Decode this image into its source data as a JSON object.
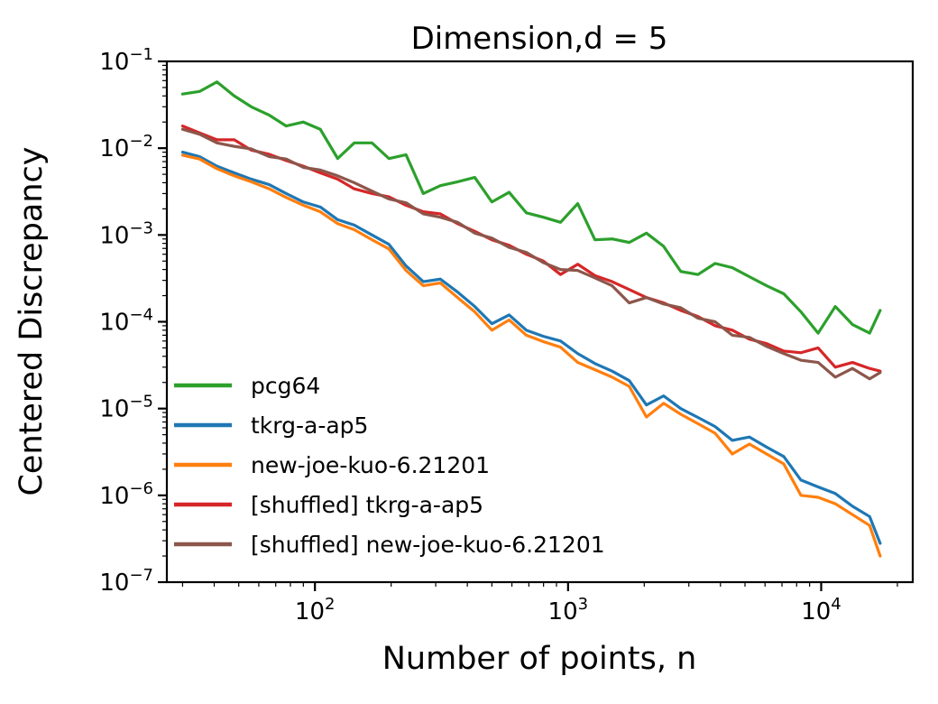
{
  "chart_data": {
    "type": "line",
    "title": "Dimension,d = 5",
    "xlabel": "Number of points, n",
    "ylabel": "Centered Discrepancy",
    "xscale": "log",
    "yscale": "log",
    "xlim": [
      26,
      23000
    ],
    "ylim": [
      1e-07,
      0.1
    ],
    "grid": false,
    "legend_position": "lower-left",
    "xticks": [
      {
        "v": 100,
        "base": "10",
        "exp": "2"
      },
      {
        "v": 1000,
        "base": "10",
        "exp": "3"
      },
      {
        "v": 10000,
        "base": "10",
        "exp": "4"
      }
    ],
    "yticks": [
      {
        "v": 0.1,
        "base": "10",
        "exp": "−1"
      },
      {
        "v": 0.01,
        "base": "10",
        "exp": "−2"
      },
      {
        "v": 0.001,
        "base": "10",
        "exp": "−3"
      },
      {
        "v": 0.0001,
        "base": "10",
        "exp": "−4"
      },
      {
        "v": 1e-05,
        "base": "10",
        "exp": "−5"
      },
      {
        "v": 1e-06,
        "base": "10",
        "exp": "−6"
      },
      {
        "v": 1e-07,
        "base": "10",
        "exp": "−7"
      }
    ],
    "x": [
      30,
      35,
      41,
      48,
      56,
      66,
      77,
      90,
      105,
      123,
      143,
      168,
      196,
      229,
      268,
      313,
      366,
      428,
      500,
      585,
      684,
      799,
      934,
      1092,
      1277,
      1493,
      1745,
      2040,
      2385,
      2788,
      3259,
      3810,
      4454,
      5207,
      6087,
      7116,
      8319,
      9725,
      11369,
      13291,
      15537,
      17100
    ],
    "series": [
      {
        "name": "pcg64",
        "color": "#2ca02c",
        "values": [
          0.042,
          0.045,
          0.058,
          0.04,
          0.03,
          0.024,
          0.018,
          0.02,
          0.0165,
          0.0076,
          0.0115,
          0.0115,
          0.0076,
          0.0084,
          0.003,
          0.0037,
          0.0041,
          0.0046,
          0.0024,
          0.0031,
          0.0018,
          0.0016,
          0.0014,
          0.0023,
          0.00088,
          0.0009,
          0.00082,
          0.00105,
          0.00074,
          0.00038,
          0.00035,
          0.00047,
          0.00042,
          0.00033,
          0.00026,
          0.00021,
          0.00013,
          7.4e-05,
          0.00015,
          9.3e-05,
          7.4e-05,
          0.000135
        ]
      },
      {
        "name": "tkrg-a-ap5",
        "color": "#1f77b4",
        "values": [
          0.009,
          0.008,
          0.0062,
          0.0052,
          0.0044,
          0.0038,
          0.003,
          0.0024,
          0.0021,
          0.0015,
          0.0013,
          0.001,
          0.00078,
          0.00044,
          0.00029,
          0.00031,
          0.00022,
          0.00015,
          9.5e-05,
          0.00012,
          8e-05,
          6.8e-05,
          6e-05,
          4.3e-05,
          3.3e-05,
          2.7e-05,
          2.1e-05,
          1.1e-05,
          1.4e-05,
          1e-05,
          7.9e-06,
          6.2e-06,
          4.3e-06,
          4.7e-06,
          3.6e-06,
          2.8e-06,
          1.5e-06,
          1.25e-06,
          1.05e-06,
          7.5e-07,
          5.7e-07,
          2.8e-07
        ]
      },
      {
        "name": "new-joe-kuo-6.21201",
        "color": "#ff7f0e",
        "values": [
          0.0083,
          0.0075,
          0.0058,
          0.0048,
          0.0041,
          0.0034,
          0.0027,
          0.0022,
          0.00185,
          0.00135,
          0.00115,
          0.00088,
          0.00069,
          0.00039,
          0.00026,
          0.00028,
          0.00019,
          0.00013,
          8e-05,
          0.000105,
          7e-05,
          5.9e-05,
          5.1e-05,
          3.4e-05,
          2.8e-05,
          2.3e-05,
          1.8e-05,
          8e-06,
          1.15e-05,
          8.6e-06,
          6.7e-06,
          5.2e-06,
          3e-06,
          3.9e-06,
          3e-06,
          2.3e-06,
          1e-06,
          9.5e-07,
          8e-07,
          6e-07,
          4.5e-07,
          2e-07
        ]
      },
      {
        "name": "[shuffled] tkrg-a-ap5",
        "color": "#d62728",
        "values": [
          0.018,
          0.015,
          0.0125,
          0.0125,
          0.0095,
          0.0085,
          0.0072,
          0.0062,
          0.0052,
          0.0044,
          0.0034,
          0.003,
          0.00275,
          0.0022,
          0.00185,
          0.00175,
          0.00135,
          0.0011,
          0.00088,
          0.00076,
          0.0006,
          0.0005,
          0.00035,
          0.00046,
          0.00034,
          0.00029,
          0.000235,
          0.00019,
          0.000165,
          0.000135,
          0.000115,
          9e-05,
          8e-05,
          6.3e-05,
          5.6e-05,
          4.6e-05,
          4.4e-05,
          5e-05,
          3e-05,
          3.4e-05,
          2.9e-05,
          2.7e-05
        ]
      },
      {
        "name": "[shuffled] new-joe-kuo-6.21201",
        "color": "#8c564b",
        "values": [
          0.0165,
          0.0145,
          0.0115,
          0.0105,
          0.0098,
          0.008,
          0.0075,
          0.006,
          0.0056,
          0.0048,
          0.004,
          0.0032,
          0.0026,
          0.00235,
          0.00175,
          0.0016,
          0.0014,
          0.00105,
          0.00092,
          0.00072,
          0.00063,
          0.00048,
          0.0004,
          0.00039,
          0.00032,
          0.00026,
          0.000165,
          0.00019,
          0.00016,
          0.000145,
          0.00011,
          0.0001,
          7e-05,
          6.6e-05,
          5.2e-05,
          4.3e-05,
          3.6e-05,
          3.4e-05,
          2.3e-05,
          2.9e-05,
          2.2e-05,
          2.6e-05
        ]
      }
    ]
  }
}
